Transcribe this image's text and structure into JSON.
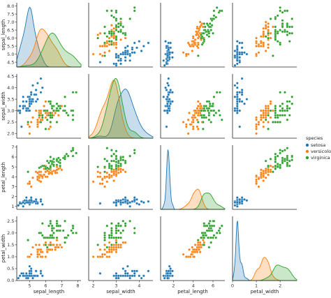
{
  "chart_data": {
    "type": "scatter",
    "kind": "pairplot",
    "diagonal": "kde",
    "variables": [
      "sepal_length",
      "sepal_width",
      "petal_length",
      "petal_width"
    ],
    "ranges": {
      "sepal_length": [
        4.2,
        8.2
      ],
      "sepal_width": [
        1.8,
        4.6
      ],
      "petal_length": [
        0.7,
        7.2
      ],
      "petal_width": [
        0.0,
        2.7
      ]
    },
    "ticks": {
      "sepal_length": [
        4,
        5,
        6,
        7,
        8
      ],
      "sepal_width": [
        2,
        3,
        4,
        5
      ],
      "petal_length": [
        2,
        4,
        6
      ],
      "petal_width": [
        0,
        1,
        2,
        3
      ]
    },
    "yticks": {
      "sepal_length": [
        "4.5",
        "5.0",
        "5.5",
        "6.0",
        "6.5",
        "7.0",
        "7.5",
        "8.0"
      ],
      "sepal_width": [
        "2.0",
        "2.5",
        "3.0",
        "3.5",
        "4.0",
        "4.5"
      ],
      "petal_length": [
        "1",
        "2",
        "3",
        "4",
        "5",
        "6",
        "7"
      ],
      "petal_width": [
        "0.0",
        "0.5",
        "1.0",
        "1.5",
        "2.0",
        "2.5"
      ]
    },
    "legend": {
      "title": "species",
      "placement": "right"
    },
    "series": [
      {
        "name": "setosa",
        "color": "#1f77b4",
        "points": [
          [
            5.1,
            3.5,
            1.4,
            0.2
          ],
          [
            4.9,
            3.0,
            1.4,
            0.2
          ],
          [
            4.7,
            3.2,
            1.3,
            0.2
          ],
          [
            4.6,
            3.1,
            1.5,
            0.2
          ],
          [
            5.0,
            3.6,
            1.4,
            0.2
          ],
          [
            5.4,
            3.9,
            1.7,
            0.4
          ],
          [
            4.6,
            3.4,
            1.4,
            0.3
          ],
          [
            5.0,
            3.4,
            1.5,
            0.2
          ],
          [
            4.4,
            2.9,
            1.4,
            0.2
          ],
          [
            4.9,
            3.1,
            1.5,
            0.1
          ],
          [
            5.4,
            3.7,
            1.5,
            0.2
          ],
          [
            4.8,
            3.4,
            1.6,
            0.2
          ],
          [
            4.8,
            3.0,
            1.4,
            0.1
          ],
          [
            4.3,
            3.0,
            1.1,
            0.1
          ],
          [
            5.8,
            4.0,
            1.2,
            0.2
          ],
          [
            5.7,
            4.4,
            1.5,
            0.4
          ],
          [
            5.4,
            3.9,
            1.3,
            0.4
          ],
          [
            5.1,
            3.5,
            1.4,
            0.3
          ],
          [
            5.7,
            3.8,
            1.7,
            0.3
          ],
          [
            5.1,
            3.8,
            1.5,
            0.3
          ],
          [
            5.4,
            3.4,
            1.7,
            0.2
          ],
          [
            5.1,
            3.7,
            1.5,
            0.4
          ],
          [
            4.6,
            3.6,
            1.0,
            0.2
          ],
          [
            5.1,
            3.3,
            1.7,
            0.5
          ],
          [
            4.8,
            3.4,
            1.9,
            0.2
          ],
          [
            5.0,
            3.0,
            1.6,
            0.2
          ],
          [
            5.0,
            3.4,
            1.6,
            0.4
          ],
          [
            5.2,
            3.5,
            1.5,
            0.2
          ],
          [
            5.2,
            3.4,
            1.4,
            0.2
          ],
          [
            4.7,
            3.2,
            1.6,
            0.2
          ],
          [
            4.8,
            3.1,
            1.6,
            0.2
          ],
          [
            5.4,
            3.4,
            1.5,
            0.4
          ],
          [
            5.2,
            4.1,
            1.5,
            0.1
          ],
          [
            5.5,
            4.2,
            1.4,
            0.2
          ],
          [
            4.9,
            3.1,
            1.5,
            0.2
          ],
          [
            5.0,
            3.2,
            1.2,
            0.2
          ],
          [
            5.5,
            3.5,
            1.3,
            0.2
          ],
          [
            4.4,
            3.0,
            1.3,
            0.2
          ],
          [
            5.1,
            3.4,
            1.5,
            0.2
          ],
          [
            5.0,
            3.5,
            1.3,
            0.3
          ],
          [
            4.5,
            2.3,
            1.3,
            0.3
          ],
          [
            4.4,
            3.2,
            1.3,
            0.2
          ],
          [
            5.0,
            3.5,
            1.6,
            0.6
          ],
          [
            5.1,
            3.8,
            1.9,
            0.4
          ],
          [
            4.8,
            3.0,
            1.4,
            0.3
          ],
          [
            5.1,
            3.8,
            1.6,
            0.2
          ],
          [
            4.6,
            3.2,
            1.4,
            0.2
          ],
          [
            5.3,
            3.7,
            1.5,
            0.2
          ],
          [
            5.0,
            3.3,
            1.4,
            0.2
          ],
          [
            4.9,
            3.6,
            1.4,
            0.1
          ]
        ]
      },
      {
        "name": "versicolor",
        "color": "#ff7f0e",
        "points": [
          [
            7.0,
            3.2,
            4.7,
            1.4
          ],
          [
            6.4,
            3.2,
            4.5,
            1.5
          ],
          [
            6.9,
            3.1,
            4.9,
            1.5
          ],
          [
            5.5,
            2.3,
            4.0,
            1.3
          ],
          [
            6.5,
            2.8,
            4.6,
            1.5
          ],
          [
            5.7,
            2.8,
            4.5,
            1.3
          ],
          [
            6.3,
            3.3,
            4.7,
            1.6
          ],
          [
            4.9,
            2.4,
            3.3,
            1.0
          ],
          [
            6.6,
            2.9,
            4.6,
            1.3
          ],
          [
            5.2,
            2.7,
            3.9,
            1.4
          ],
          [
            5.0,
            2.0,
            3.5,
            1.0
          ],
          [
            5.9,
            3.0,
            4.2,
            1.5
          ],
          [
            6.0,
            2.2,
            4.0,
            1.0
          ],
          [
            6.1,
            2.9,
            4.7,
            1.4
          ],
          [
            5.6,
            2.9,
            3.6,
            1.3
          ],
          [
            6.7,
            3.1,
            4.4,
            1.4
          ],
          [
            5.6,
            3.0,
            4.5,
            1.5
          ],
          [
            5.8,
            2.7,
            4.1,
            1.0
          ],
          [
            6.2,
            2.2,
            4.5,
            1.5
          ],
          [
            5.6,
            2.5,
            3.9,
            1.1
          ],
          [
            5.9,
            3.2,
            4.8,
            1.8
          ],
          [
            6.1,
            2.8,
            4.0,
            1.3
          ],
          [
            6.3,
            2.5,
            4.9,
            1.5
          ],
          [
            6.1,
            2.8,
            4.7,
            1.2
          ],
          [
            6.4,
            2.9,
            4.3,
            1.3
          ],
          [
            6.6,
            3.0,
            4.4,
            1.4
          ],
          [
            6.8,
            2.8,
            4.8,
            1.4
          ],
          [
            6.7,
            3.0,
            5.0,
            1.7
          ],
          [
            6.0,
            2.9,
            4.5,
            1.5
          ],
          [
            5.7,
            2.6,
            3.5,
            1.0
          ],
          [
            5.5,
            2.4,
            3.8,
            1.1
          ],
          [
            5.5,
            2.4,
            3.7,
            1.0
          ],
          [
            5.8,
            2.7,
            3.9,
            1.2
          ],
          [
            6.0,
            2.7,
            5.1,
            1.6
          ],
          [
            5.4,
            3.0,
            4.5,
            1.5
          ],
          [
            6.0,
            3.4,
            4.5,
            1.6
          ],
          [
            6.7,
            3.1,
            4.7,
            1.5
          ],
          [
            6.3,
            2.3,
            4.4,
            1.3
          ],
          [
            5.6,
            3.0,
            4.1,
            1.3
          ],
          [
            5.5,
            2.5,
            4.0,
            1.3
          ],
          [
            5.5,
            2.6,
            4.4,
            1.2
          ],
          [
            6.1,
            3.0,
            4.6,
            1.4
          ],
          [
            5.8,
            2.6,
            4.0,
            1.2
          ],
          [
            5.0,
            2.3,
            3.3,
            1.0
          ],
          [
            5.6,
            2.7,
            4.2,
            1.3
          ],
          [
            5.7,
            3.0,
            4.2,
            1.2
          ],
          [
            5.7,
            2.9,
            4.2,
            1.3
          ],
          [
            6.2,
            2.9,
            4.3,
            1.3
          ],
          [
            5.1,
            2.5,
            3.0,
            1.1
          ],
          [
            5.7,
            2.8,
            4.1,
            1.3
          ]
        ]
      },
      {
        "name": "virginica",
        "color": "#2ca02c",
        "points": [
          [
            6.3,
            3.3,
            6.0,
            2.5
          ],
          [
            5.8,
            2.7,
            5.1,
            1.9
          ],
          [
            7.1,
            3.0,
            5.9,
            2.1
          ],
          [
            6.3,
            2.9,
            5.6,
            1.8
          ],
          [
            6.5,
            3.0,
            5.8,
            2.2
          ],
          [
            7.6,
            3.0,
            6.6,
            2.1
          ],
          [
            4.9,
            2.5,
            4.5,
            1.7
          ],
          [
            7.3,
            2.9,
            6.3,
            1.8
          ],
          [
            6.7,
            2.5,
            5.8,
            1.8
          ],
          [
            7.2,
            3.6,
            6.1,
            2.5
          ],
          [
            6.5,
            3.2,
            5.1,
            2.0
          ],
          [
            6.4,
            2.7,
            5.3,
            1.9
          ],
          [
            6.8,
            3.0,
            5.5,
            2.1
          ],
          [
            5.7,
            2.5,
            5.0,
            2.0
          ],
          [
            5.8,
            2.8,
            5.1,
            2.4
          ],
          [
            6.4,
            3.2,
            5.3,
            2.3
          ],
          [
            6.5,
            3.0,
            5.5,
            1.8
          ],
          [
            7.7,
            3.8,
            6.7,
            2.2
          ],
          [
            7.7,
            2.6,
            6.9,
            2.3
          ],
          [
            6.0,
            2.2,
            5.0,
            1.5
          ],
          [
            6.9,
            3.2,
            5.7,
            2.3
          ],
          [
            5.6,
            2.8,
            4.9,
            2.0
          ],
          [
            7.7,
            2.8,
            6.7,
            2.0
          ],
          [
            6.3,
            2.7,
            4.9,
            1.8
          ],
          [
            6.7,
            3.3,
            5.7,
            2.1
          ],
          [
            7.2,
            3.2,
            6.0,
            1.8
          ],
          [
            6.2,
            2.8,
            4.8,
            1.8
          ],
          [
            6.1,
            3.0,
            4.9,
            1.8
          ],
          [
            6.4,
            2.8,
            5.6,
            2.1
          ],
          [
            7.2,
            3.0,
            5.8,
            1.6
          ],
          [
            7.4,
            2.8,
            6.1,
            1.9
          ],
          [
            7.9,
            3.8,
            6.4,
            2.0
          ],
          [
            6.4,
            2.8,
            5.6,
            2.2
          ],
          [
            6.3,
            2.8,
            5.1,
            1.5
          ],
          [
            6.1,
            2.6,
            5.6,
            1.4
          ],
          [
            7.7,
            3.0,
            6.1,
            2.3
          ],
          [
            6.3,
            3.4,
            5.6,
            2.4
          ],
          [
            6.4,
            3.1,
            5.5,
            1.8
          ],
          [
            6.0,
            3.0,
            4.8,
            1.8
          ],
          [
            6.9,
            3.1,
            5.4,
            2.1
          ],
          [
            6.7,
            3.1,
            5.6,
            2.4
          ],
          [
            6.9,
            3.1,
            5.1,
            2.3
          ],
          [
            5.8,
            2.7,
            5.1,
            1.9
          ],
          [
            6.8,
            3.2,
            5.9,
            2.3
          ],
          [
            6.7,
            3.3,
            5.7,
            2.5
          ],
          [
            6.7,
            3.0,
            5.2,
            2.3
          ],
          [
            6.3,
            2.5,
            5.0,
            1.9
          ],
          [
            6.5,
            3.0,
            5.2,
            2.0
          ],
          [
            6.2,
            3.4,
            5.4,
            2.3
          ],
          [
            5.9,
            3.0,
            5.1,
            1.8
          ]
        ]
      }
    ]
  }
}
